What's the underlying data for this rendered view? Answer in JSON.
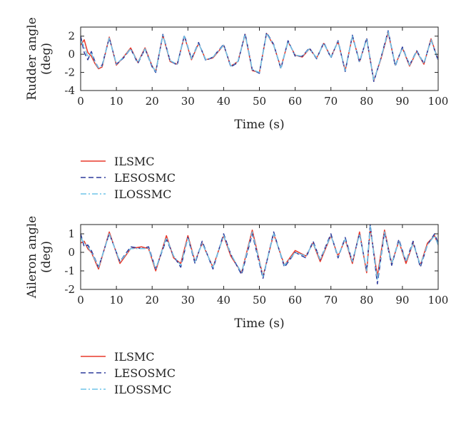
{
  "chart_data": [
    {
      "type": "line",
      "xlabel": "Time (s)",
      "ylabel_lines": [
        "Rudder angle",
        "(deg)"
      ],
      "xlim": [
        0,
        100
      ],
      "ylim": [
        -4,
        3
      ],
      "xticks": [
        0,
        10,
        20,
        30,
        40,
        50,
        60,
        70,
        80,
        90,
        100
      ],
      "yticks": [
        -4,
        -2,
        0,
        2
      ],
      "grid": false,
      "legend_position": "below",
      "legend": [
        "ILSMC",
        "LESOSMC",
        "ILOSSMC"
      ],
      "series": [
        {
          "name": "ILSMC",
          "color": "#e8382a",
          "style": "solid",
          "x": [
            0,
            1,
            2,
            3,
            4,
            5,
            6,
            8,
            10,
            12,
            14,
            16,
            18,
            20,
            21,
            23,
            25,
            27,
            29,
            31,
            33,
            35,
            37,
            40,
            42,
            44,
            46,
            48,
            50,
            52,
            54,
            56,
            58,
            60,
            62,
            64,
            66,
            68,
            70,
            72,
            74,
            76,
            78,
            80,
            82,
            84,
            86,
            88,
            90,
            92,
            94,
            96,
            98,
            100
          ],
          "y": [
            1.0,
            1.6,
            0.2,
            -0.2,
            -1.0,
            -1.6,
            -1.4,
            1.9,
            -1.2,
            -0.3,
            0.7,
            -0.9,
            0.7,
            -1.3,
            -1.9,
            2.1,
            -0.8,
            -1.1,
            2.0,
            -0.6,
            1.2,
            -0.6,
            -0.4,
            1.0,
            -1.3,
            -0.8,
            2.2,
            -1.8,
            -2.0,
            2.3,
            1.0,
            -1.5,
            1.4,
            -0.1,
            -0.3,
            0.6,
            -0.4,
            1.2,
            -0.3,
            1.4,
            -1.8,
            2.0,
            -0.8,
            1.7,
            -2.9,
            -0.5,
            2.4,
            -1.2,
            0.7,
            -1.3,
            0.3,
            -1.1,
            1.7,
            -0.6
          ]
        },
        {
          "name": "LESOSMC",
          "color": "#2d3a9c",
          "style": "dashed",
          "x": [
            0,
            1,
            2,
            3,
            4,
            5,
            6,
            8,
            10,
            12,
            14,
            16,
            18,
            20,
            21,
            23,
            25,
            27,
            29,
            31,
            33,
            35,
            37,
            40,
            42,
            44,
            46,
            48,
            50,
            52,
            54,
            56,
            58,
            60,
            62,
            64,
            66,
            68,
            70,
            72,
            74,
            76,
            78,
            80,
            82,
            84,
            86,
            88,
            90,
            92,
            94,
            96,
            98,
            100
          ],
          "y": [
            2.0,
            0.2,
            -0.6,
            0.3,
            -0.8,
            -1.5,
            -1.2,
            1.8,
            -1.1,
            -0.4,
            0.6,
            -1.0,
            0.6,
            -1.4,
            -2.0,
            2.2,
            -0.7,
            -1.2,
            2.1,
            -0.5,
            1.3,
            -0.7,
            -0.3,
            1.1,
            -1.4,
            -0.9,
            2.3,
            -1.7,
            -2.1,
            2.4,
            1.1,
            -1.6,
            1.5,
            -0.2,
            -0.2,
            0.7,
            -0.5,
            1.3,
            -0.4,
            1.5,
            -1.9,
            2.1,
            -0.9,
            1.8,
            -3.0,
            -0.4,
            2.6,
            -1.3,
            0.8,
            -1.2,
            0.4,
            -1.0,
            1.6,
            -0.7
          ]
        },
        {
          "name": "ILOSSMC",
          "color": "#6fc3e8",
          "style": "dashdot",
          "x": [
            0,
            1,
            2,
            3,
            4,
            5,
            6,
            8,
            10,
            12,
            14,
            16,
            18,
            20,
            21,
            23,
            25,
            27,
            29,
            31,
            33,
            35,
            37,
            40,
            42,
            44,
            46,
            48,
            50,
            52,
            54,
            56,
            58,
            60,
            62,
            64,
            66,
            68,
            70,
            72,
            74,
            76,
            78,
            80,
            82,
            84,
            86,
            88,
            90,
            92,
            94,
            96,
            98,
            100
          ],
          "y": [
            1.5,
            0.9,
            -0.3,
            0.1,
            -0.9,
            -1.5,
            -1.3,
            1.8,
            -1.1,
            -0.3,
            0.6,
            -0.9,
            0.6,
            -1.3,
            -1.9,
            2.1,
            -0.7,
            -1.1,
            2.0,
            -0.5,
            1.2,
            -0.6,
            -0.3,
            1.0,
            -1.3,
            -0.8,
            2.2,
            -1.7,
            -2.0,
            2.3,
            1.0,
            -1.5,
            1.4,
            -0.1,
            -0.2,
            0.6,
            -0.4,
            1.2,
            -0.3,
            1.4,
            -1.8,
            2.0,
            -0.8,
            1.7,
            -2.9,
            -0.4,
            2.5,
            -1.2,
            0.7,
            -1.2,
            0.3,
            -1.0,
            1.6,
            -0.6
          ]
        }
      ]
    },
    {
      "type": "line",
      "xlabel": "Time (s)",
      "ylabel_lines": [
        "Aileron angle",
        "(deg)"
      ],
      "xlim": [
        0,
        100
      ],
      "ylim": [
        -2,
        1.5
      ],
      "xticks": [
        0,
        10,
        20,
        30,
        40,
        50,
        60,
        70,
        80,
        90,
        100
      ],
      "yticks": [
        -2,
        -1,
        0,
        1
      ],
      "grid": false,
      "legend_position": "below",
      "legend": [
        "ILSMC",
        "LESOSMC",
        "ILOSSMC"
      ],
      "series": [
        {
          "name": "ILSMC",
          "color": "#e8382a",
          "style": "solid",
          "x": [
            0,
            1,
            2,
            3,
            5,
            8,
            11,
            14,
            17,
            19,
            21,
            24,
            26,
            28,
            30,
            32,
            34,
            37,
            40,
            42,
            45,
            48,
            51,
            54,
            57,
            60,
            63,
            65,
            67,
            70,
            72,
            74,
            76,
            78,
            80,
            81,
            83,
            85,
            87,
            89,
            91,
            93,
            95,
            97,
            99,
            100
          ],
          "y": [
            0.5,
            0.6,
            0.2,
            0.0,
            -0.9,
            1.1,
            -0.6,
            0.2,
            0.3,
            0.2,
            -1.0,
            0.9,
            -0.3,
            -0.6,
            0.9,
            -0.5,
            0.5,
            -0.8,
            0.9,
            -0.2,
            -1.1,
            1.2,
            -1.3,
            1.0,
            -0.7,
            0.1,
            -0.2,
            0.5,
            -0.5,
            0.9,
            -0.2,
            0.7,
            -0.6,
            1.1,
            -1.1,
            1.3,
            -1.3,
            1.2,
            -0.6,
            0.6,
            -0.6,
            0.5,
            -0.7,
            0.5,
            0.9,
            0.4
          ]
        },
        {
          "name": "LESOSMC",
          "color": "#2d3a9c",
          "style": "dashed",
          "x": [
            0,
            1,
            2,
            3,
            5,
            8,
            11,
            14,
            17,
            19,
            21,
            24,
            26,
            28,
            30,
            32,
            34,
            37,
            40,
            42,
            45,
            48,
            51,
            54,
            57,
            60,
            63,
            65,
            67,
            70,
            72,
            74,
            76,
            78,
            80,
            81,
            83,
            85,
            87,
            89,
            91,
            93,
            95,
            97,
            99,
            100
          ],
          "y": [
            1.0,
            0.3,
            0.4,
            0.1,
            -0.8,
            1.0,
            -0.5,
            0.3,
            0.2,
            0.3,
            -0.9,
            0.7,
            -0.2,
            -0.8,
            0.8,
            -0.6,
            0.6,
            -0.9,
            1.0,
            -0.1,
            -1.2,
            1.0,
            -1.4,
            1.1,
            -0.8,
            0.0,
            -0.3,
            0.6,
            -0.4,
            1.0,
            -0.3,
            0.8,
            -0.5,
            1.0,
            -1.0,
            1.5,
            -1.7,
            1.1,
            -0.7,
            0.7,
            -0.5,
            0.6,
            -0.8,
            0.4,
            1.0,
            0.5
          ]
        },
        {
          "name": "ILOSSMC",
          "color": "#6fc3e8",
          "style": "dashdot",
          "x": [
            0,
            1,
            2,
            3,
            5,
            8,
            11,
            14,
            17,
            19,
            21,
            24,
            26,
            28,
            30,
            32,
            34,
            37,
            40,
            42,
            45,
            48,
            51,
            54,
            57,
            60,
            63,
            65,
            67,
            70,
            72,
            74,
            76,
            78,
            80,
            81,
            83,
            85,
            87,
            89,
            91,
            93,
            95,
            97,
            99,
            100
          ],
          "y": [
            0.8,
            0.5,
            0.3,
            0.0,
            -0.8,
            1.0,
            -0.5,
            0.2,
            0.2,
            0.2,
            -0.9,
            0.8,
            -0.2,
            -0.7,
            0.8,
            -0.5,
            0.5,
            -0.8,
            0.9,
            -0.1,
            -1.1,
            1.1,
            -1.3,
            1.0,
            -0.7,
            0.0,
            -0.2,
            0.5,
            -0.4,
            0.9,
            -0.2,
            0.7,
            -0.5,
            1.0,
            -1.0,
            1.4,
            -1.5,
            1.1,
            -0.6,
            0.6,
            -0.5,
            0.5,
            -0.7,
            0.4,
            0.9,
            0.4
          ]
        }
      ]
    }
  ]
}
